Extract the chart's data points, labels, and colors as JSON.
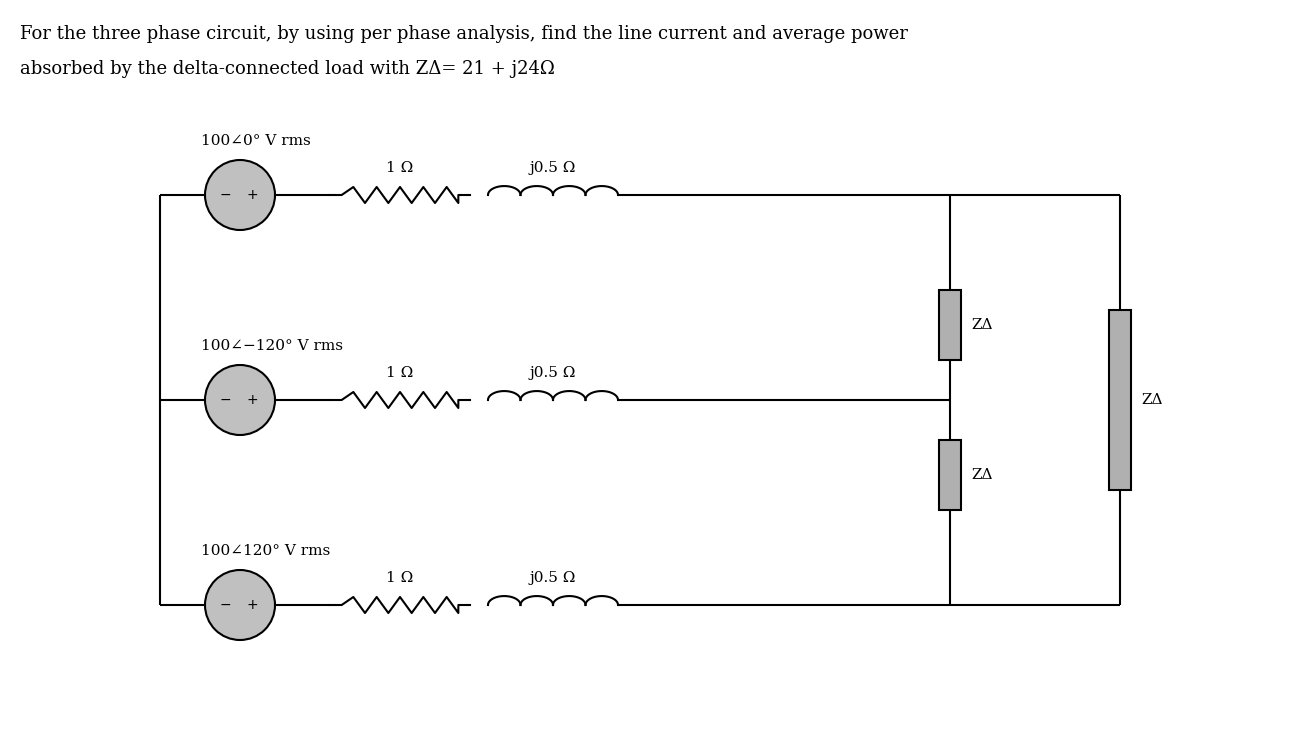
{
  "title_line1": "For the three phase circuit, by using per phase analysis, find the line current and average power",
  "title_line2": "absorbed by the delta-connected load with ZΔ= 21 + j24Ω",
  "bg_color": "#ffffff",
  "source_fill": "#c0c0c0",
  "box_fill": "#b0b0b0",
  "line_color": "#000000",
  "text_color": "#000000",
  "r_label": "1 Ω",
  "l_label": "j0.5 Ω",
  "z_label": "ZΔ",
  "font_size_title": 13,
  "font_size_label": 11,
  "font_size_component": 11,
  "source_labels": [
    "100∠0° V rms",
    "100∠−120° V rms",
    "100∠120° V rms"
  ]
}
